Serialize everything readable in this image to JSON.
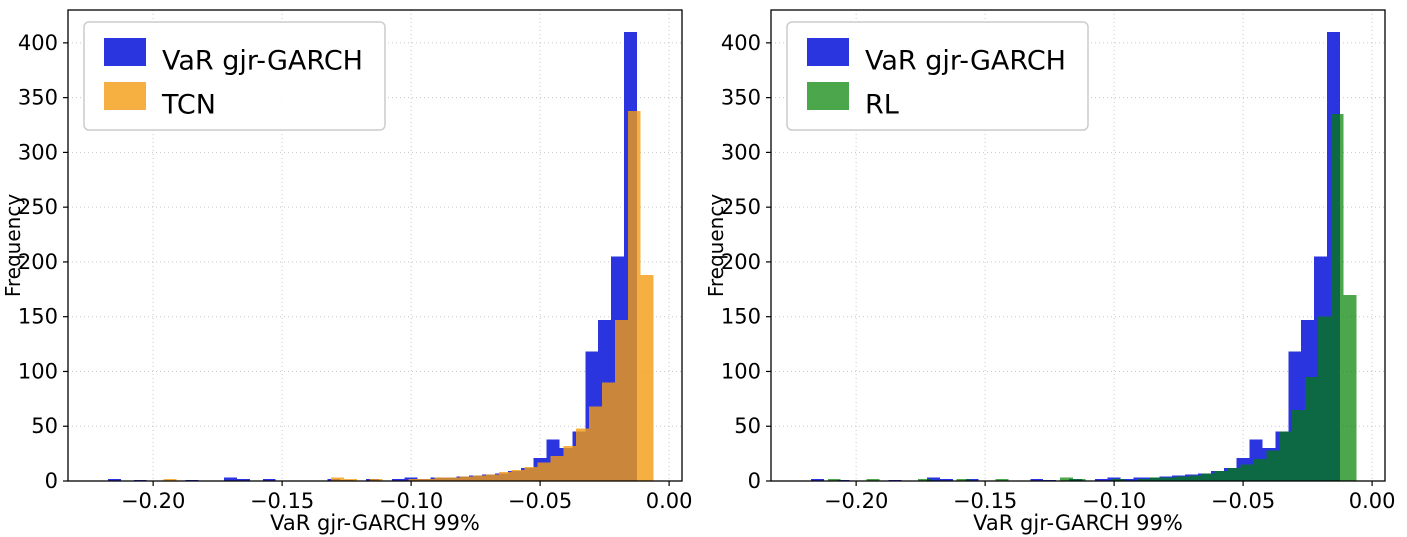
{
  "figure": {
    "background": "#ffffff",
    "grid_color": "#c8c8c8",
    "spine_color": "#000000"
  },
  "chart_data": [
    {
      "type": "histogram",
      "title": "",
      "xlabel": "VaR gjr-GARCH 99%",
      "ylabel": "Frequency",
      "xlim": [
        -0.233,
        0.005
      ],
      "ylim": [
        0,
        430
      ],
      "xticks": [
        -0.2,
        -0.15,
        -0.1,
        -0.05,
        0.0
      ],
      "xtick_labels": [
        "−0.20",
        "−0.15",
        "−0.10",
        "−0.05",
        "0.00"
      ],
      "yticks": [
        0,
        50,
        100,
        150,
        200,
        250,
        300,
        350,
        400
      ],
      "grid": "dotted",
      "legend": {
        "position": "upper left",
        "entries": [
          "VaR gjr-GARCH",
          "TCN"
        ]
      },
      "bin_width": 0.005,
      "series": [
        {
          "name": "VaR gjr-GARCH",
          "color": "#2b35df",
          "opacity": 1.0,
          "bins": [
            [
              -0.2175,
              2
            ],
            [
              -0.2075,
              1
            ],
            [
              -0.1875,
              1
            ],
            [
              -0.1725,
              3
            ],
            [
              -0.1675,
              2
            ],
            [
              -0.1575,
              2
            ],
            [
              -0.1325,
              2
            ],
            [
              -0.1275,
              1
            ],
            [
              -0.1175,
              2
            ],
            [
              -0.1075,
              2
            ],
            [
              -0.1025,
              3
            ],
            [
              -0.0975,
              2
            ],
            [
              -0.0925,
              3
            ],
            [
              -0.0875,
              3
            ],
            [
              -0.0825,
              4
            ],
            [
              -0.0775,
              5
            ],
            [
              -0.0725,
              6
            ],
            [
              -0.0675,
              7
            ],
            [
              -0.0625,
              9
            ],
            [
              -0.0575,
              12
            ],
            [
              -0.0525,
              21
            ],
            [
              -0.0475,
              38
            ],
            [
              -0.0425,
              30
            ],
            [
              -0.0375,
              45
            ],
            [
              -0.0325,
              118
            ],
            [
              -0.0275,
              147
            ],
            [
              -0.0225,
              205
            ],
            [
              -0.0175,
              410
            ]
          ]
        },
        {
          "name": "TCN",
          "color": "#f39c12",
          "opacity": 0.8,
          "bins": [
            [
              -0.196,
              2
            ],
            [
              -0.131,
              3
            ],
            [
              -0.126,
              2
            ],
            [
              -0.116,
              2
            ],
            [
              -0.101,
              2
            ],
            [
              -0.096,
              2
            ],
            [
              -0.091,
              3
            ],
            [
              -0.086,
              3
            ],
            [
              -0.081,
              4
            ],
            [
              -0.076,
              5
            ],
            [
              -0.071,
              6
            ],
            [
              -0.066,
              8
            ],
            [
              -0.061,
              10
            ],
            [
              -0.056,
              13
            ],
            [
              -0.051,
              17
            ],
            [
              -0.046,
              23
            ],
            [
              -0.041,
              32
            ],
            [
              -0.036,
              48
            ],
            [
              -0.031,
              68
            ],
            [
              -0.026,
              90
            ],
            [
              -0.021,
              147
            ],
            [
              -0.016,
              338
            ],
            [
              -0.011,
              188
            ]
          ]
        }
      ]
    },
    {
      "type": "histogram",
      "title": "",
      "xlabel": "VaR gjr-GARCH 99%",
      "ylabel": "Frequency",
      "xlim": [
        -0.233,
        0.005
      ],
      "ylim": [
        0,
        430
      ],
      "xticks": [
        -0.2,
        -0.15,
        -0.1,
        -0.05,
        0.0
      ],
      "xtick_labels": [
        "−0.20",
        "−0.15",
        "−0.10",
        "−0.05",
        "0.00"
      ],
      "yticks": [
        0,
        50,
        100,
        150,
        200,
        250,
        300,
        350,
        400
      ],
      "grid": "dotted",
      "legend": {
        "position": "upper left",
        "entries": [
          "VaR gjr-GARCH",
          "RL"
        ]
      },
      "bin_width": 0.005,
      "series": [
        {
          "name": "VaR gjr-GARCH",
          "color": "#2b35df",
          "opacity": 1.0,
          "bins": [
            [
              -0.2175,
              2
            ],
            [
              -0.2075,
              1
            ],
            [
              -0.1875,
              1
            ],
            [
              -0.1725,
              3
            ],
            [
              -0.1675,
              2
            ],
            [
              -0.1575,
              2
            ],
            [
              -0.1325,
              2
            ],
            [
              -0.1275,
              1
            ],
            [
              -0.1175,
              2
            ],
            [
              -0.1075,
              2
            ],
            [
              -0.1025,
              3
            ],
            [
              -0.0975,
              2
            ],
            [
              -0.0925,
              3
            ],
            [
              -0.0875,
              3
            ],
            [
              -0.0825,
              4
            ],
            [
              -0.0775,
              5
            ],
            [
              -0.0725,
              6
            ],
            [
              -0.0675,
              7
            ],
            [
              -0.0625,
              9
            ],
            [
              -0.0575,
              12
            ],
            [
              -0.0525,
              21
            ],
            [
              -0.0475,
              38
            ],
            [
              -0.0425,
              30
            ],
            [
              -0.0375,
              45
            ],
            [
              -0.0325,
              118
            ],
            [
              -0.0275,
              147
            ],
            [
              -0.0225,
              205
            ],
            [
              -0.0175,
              410
            ]
          ]
        },
        {
          "name": "RL",
          "color": "#008000",
          "opacity": 0.7,
          "bins": [
            [
              -0.211,
              2
            ],
            [
              -0.196,
              2
            ],
            [
              -0.176,
              2
            ],
            [
              -0.161,
              2
            ],
            [
              -0.146,
              2
            ],
            [
              -0.121,
              3
            ],
            [
              -0.116,
              2
            ],
            [
              -0.101,
              2
            ],
            [
              -0.091,
              2
            ],
            [
              -0.086,
              3
            ],
            [
              -0.081,
              3
            ],
            [
              -0.076,
              4
            ],
            [
              -0.071,
              5
            ],
            [
              -0.066,
              7
            ],
            [
              -0.061,
              9
            ],
            [
              -0.056,
              12
            ],
            [
              -0.051,
              15
            ],
            [
              -0.046,
              20
            ],
            [
              -0.041,
              28
            ],
            [
              -0.036,
              45
            ],
            [
              -0.031,
              65
            ],
            [
              -0.026,
              95
            ],
            [
              -0.021,
              150
            ],
            [
              -0.016,
              335
            ],
            [
              -0.011,
              170
            ]
          ]
        }
      ]
    }
  ]
}
